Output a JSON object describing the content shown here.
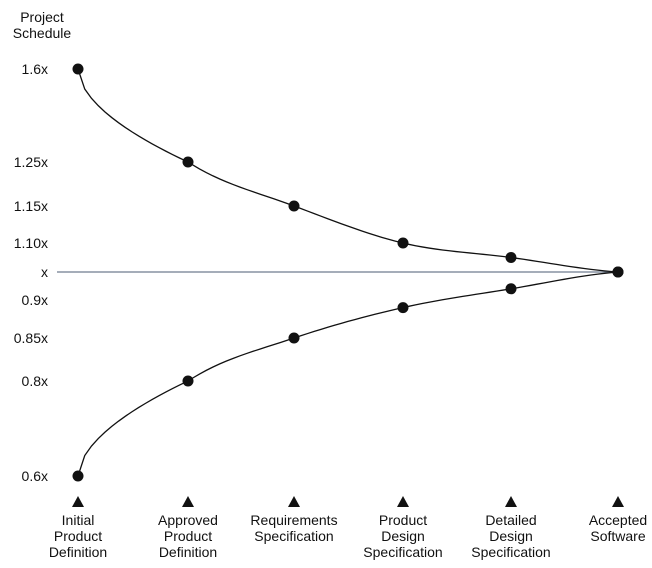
{
  "chart_data": {
    "type": "line",
    "ylabel": [
      "Project",
      "Schedule"
    ],
    "y_ticks": [
      {
        "value": 1.6,
        "label": "1.6x"
      },
      {
        "value": 1.25,
        "label": "1.25x"
      },
      {
        "value": 1.15,
        "label": "1.15x"
      },
      {
        "value": 1.1,
        "label": "1.10x"
      },
      {
        "value": 1.0,
        "label": "x"
      },
      {
        "value": 0.9,
        "label": "0.9x"
      },
      {
        "value": 0.85,
        "label": "0.85x"
      },
      {
        "value": 0.8,
        "label": "0.8x"
      },
      {
        "value": 0.6,
        "label": "0.6x"
      }
    ],
    "categories": [
      [
        "Initial",
        "Product",
        "Definition"
      ],
      [
        "Approved",
        "Product",
        "Definition"
      ],
      [
        "Requirements",
        "Specification"
      ],
      [
        "Product",
        "Design",
        "Specification"
      ],
      [
        "Detailed",
        "Design",
        "Specification"
      ],
      [
        "Accepted",
        "Software"
      ]
    ],
    "reference_value": 1.0,
    "series": [
      {
        "values": [
          1.6,
          1.25,
          1.15,
          1.1,
          1.05,
          1.0
        ]
      },
      {
        "values": [
          0.6,
          0.8,
          0.85,
          0.89,
          0.94,
          1.0
        ]
      }
    ],
    "colors": {
      "line": "#111111",
      "reference": "#6f7c8f",
      "marker": "#111111"
    }
  }
}
